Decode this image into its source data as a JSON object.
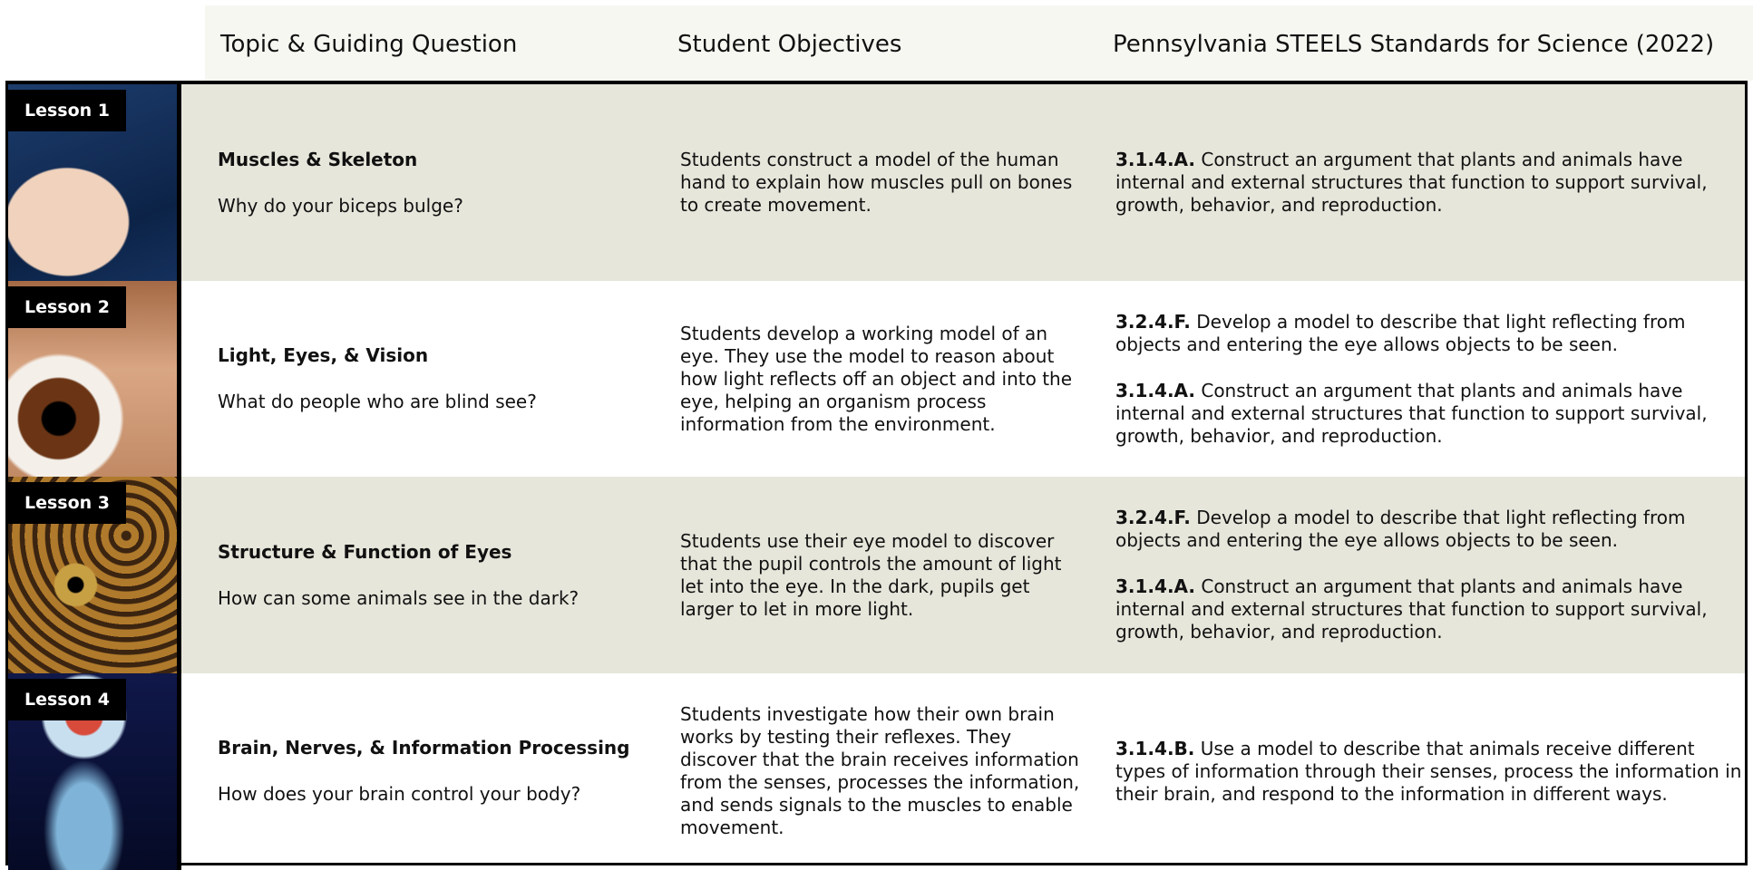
{
  "header": {
    "columns": [
      "Topic & Guiding Question",
      "Student Objectives",
      "Pennsylvania STEELS Standards for Science (2022)"
    ]
  },
  "rows": [
    {
      "lesson": "Lesson 1",
      "topic": "Muscles & Skeleton",
      "question": "Why do your biceps bulge?",
      "objective": "Students construct a model of the human hand to explain how muscles pull on bones to create movement.",
      "standards": [
        {
          "code": "3.1.4.A.",
          "text": "Construct an argument that plants and animals have internal and external structures that function to support survival, growth, behavior, and reproduction."
        }
      ]
    },
    {
      "lesson": "Lesson 2",
      "topic": "Light, Eyes, & Vision",
      "question": "What do people who are blind see?",
      "objective": "Students develop a working model of an eye. They use the model to reason about how light reflects off an object and into the eye, helping an organism process information from the environment.",
      "standards": [
        {
          "code": "3.2.4.F.",
          "text": "Develop a model to describe that light reflecting from objects and entering the eye allows objects to be seen."
        },
        {
          "code": "3.1.4.A.",
          "text": "Construct an argument that plants and animals have internal and external structures that function to support survival, growth, behavior, and reproduction."
        }
      ]
    },
    {
      "lesson": "Lesson 3",
      "topic": "Structure & Function of Eyes",
      "question": "How can some animals see in the dark?",
      "objective": "Students use their eye model to discover that the pupil controls the amount of light let into the eye. In the dark, pupils get larger to let in more light.",
      "standards": [
        {
          "code": "3.2.4.F.",
          "text": "Develop a model to describe that light reflecting from objects and entering the eye allows objects to be seen."
        },
        {
          "code": "3.1.4.A.",
          "text": "Construct an argument that plants and animals have internal and external structures that function to support survival, growth, behavior, and reproduction."
        }
      ]
    },
    {
      "lesson": "Lesson 4",
      "topic": "Brain, Nerves, & Information Processing",
      "question": "How does your brain control your body?",
      "objective": "Students investigate how their own brain works by testing their reflexes. They discover that the brain receives information from the senses, processes the information, and sends signals to the muscles to enable movement.",
      "standards": [
        {
          "code": "3.1.4.B.",
          "text": "Use a model to describe that animals receive different types of information through their senses, process the information in their brain, and respond to the information in different ways."
        }
      ]
    }
  ]
}
